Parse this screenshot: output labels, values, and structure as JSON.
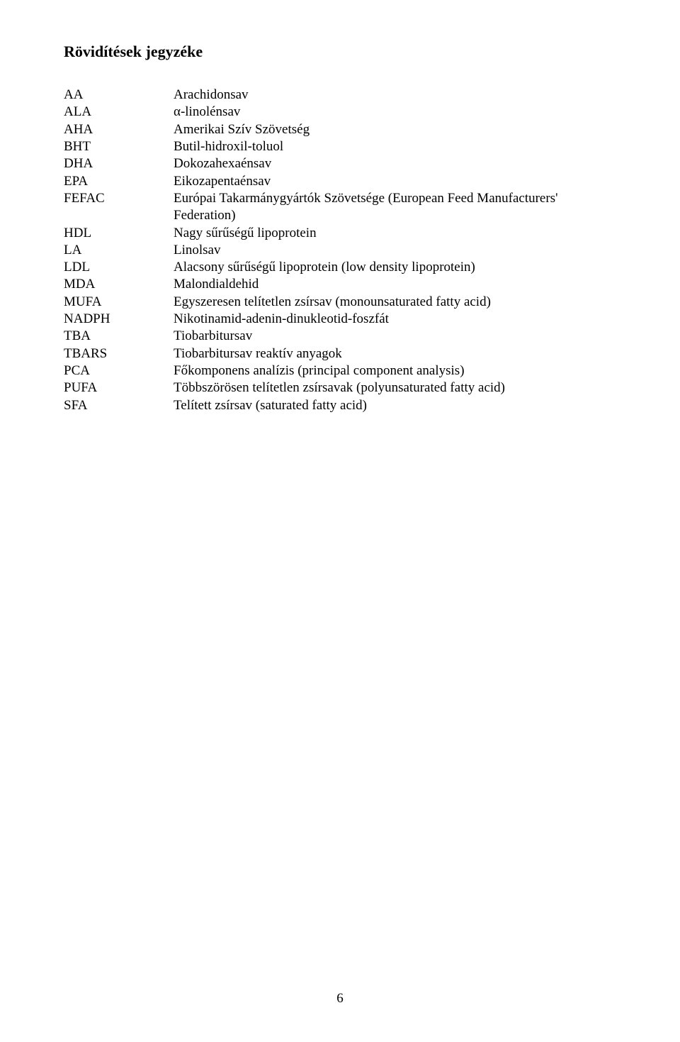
{
  "title": "Rövidítések jegyzéke",
  "rows": [
    {
      "abbr": "AA",
      "def": "Arachidonsav"
    },
    {
      "abbr": "ALA",
      "def": "α-linolénsav"
    },
    {
      "abbr": "AHA",
      "def": "Amerikai Szív Szövetség"
    },
    {
      "abbr": "BHT",
      "def": "Butil-hidroxil-toluol"
    },
    {
      "abbr": "DHA",
      "def": "Dokozahexaénsav"
    },
    {
      "abbr": "EPA",
      "def": "Eikozapentaénsav"
    },
    {
      "abbr": "FEFAC",
      "def": "Európai Takarmánygyártók Szövetsége (European Feed Manufacturers' Federation)"
    },
    {
      "abbr": "HDL",
      "def": "Nagy sűrűségű lipoprotein"
    },
    {
      "abbr": "LA",
      "def": "Linolsav"
    },
    {
      "abbr": "LDL",
      "def": "Alacsony sűrűségű lipoprotein (low density lipoprotein)"
    },
    {
      "abbr": "MDA",
      "def": "Malondialdehid"
    },
    {
      "abbr": "MUFA",
      "def": "Egyszeresen telítetlen zsírsav (monounsaturated fatty acid)"
    },
    {
      "abbr": "NADPH",
      "def": "Nikotinamid-adenin-dinukleotid-foszfát"
    },
    {
      "abbr": "TBA",
      "def": "Tiobarbitursav"
    },
    {
      "abbr": "TBARS",
      "def": "Tiobarbitursav reaktív anyagok"
    },
    {
      "abbr": "PCA",
      "def": "Főkomponens analízis (principal component analysis)"
    },
    {
      "abbr": "PUFA",
      "def": "Többszörösen telítetlen zsírsavak (polyunsaturated fatty acid)"
    },
    {
      "abbr": "SFA",
      "def": "Telített zsírsav (saturated fatty acid)"
    }
  ],
  "page_number": "6"
}
